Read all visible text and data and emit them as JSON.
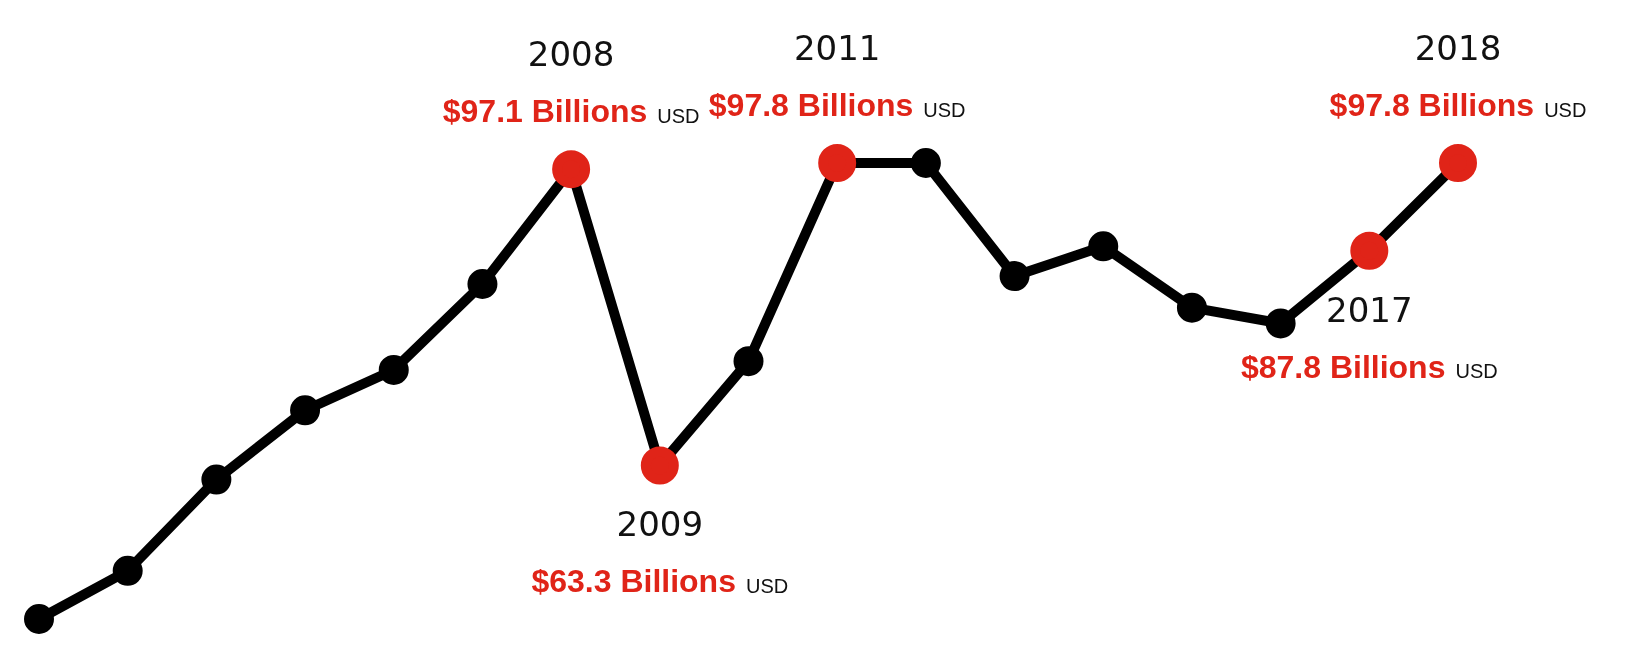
{
  "chart_data": {
    "type": "line",
    "categories": [
      null,
      null,
      null,
      null,
      null,
      null,
      null,
      null,
      null,
      null,
      null,
      null,
      null,
      null,
      null,
      null,
      null
    ],
    "series": [
      {
        "color": "#000000",
        "colors": [
          "#000000",
          "#000000",
          "#000000",
          "#000000",
          "#000000",
          "#000000",
          "#e02418",
          "#e02418",
          "#000000",
          "#e02418",
          "#000000",
          "#000000",
          "#000000",
          "#000000",
          "#000000",
          "#e02418",
          "#e02418"
        ],
        "values": [
          45.8,
          51.3,
          61.7,
          69.6,
          74.2,
          84.0,
          97.1,
          63.3,
          75.2,
          97.8,
          97.8,
          84.9,
          88.3,
          81.3,
          79.5,
          87.8,
          97.8
        ],
        "value_labels": [
          null,
          null,
          null,
          null,
          null,
          null,
          "2008\n$97.1 Billions USD",
          "2009\n$63.3 Billions USD",
          null,
          "2011\n$97.8 Billions USD",
          null,
          null,
          null,
          null,
          null,
          "2017\n$87.8 Billions USD",
          "2018\n$97.8 Billions USD"
        ]
      }
    ],
    "marker": "circle",
    "line_style": "solid",
    "grid": false,
    "legend": false,
    "tick_labels": false
  }
}
